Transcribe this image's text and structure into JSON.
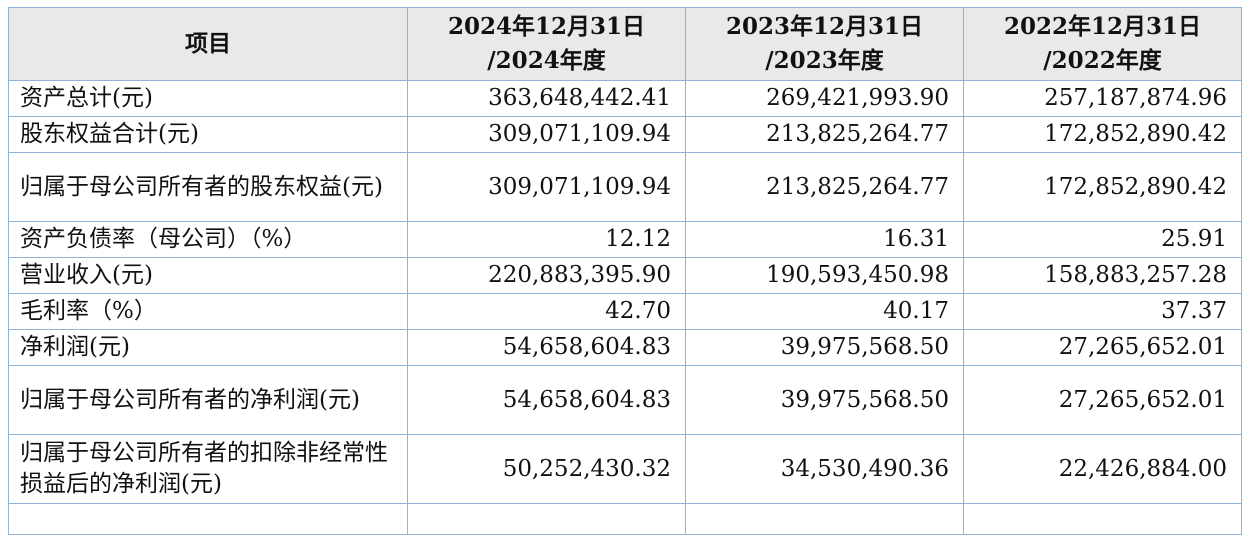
{
  "table": {
    "headers": [
      "项目",
      "2024年12月31日\n/2024年度",
      "2023年12月31日\n/2023年度",
      "2022年12月31日\n/2022年度"
    ],
    "header_lines": [
      [
        "项目"
      ],
      [
        "2024年12月31日",
        "/2024年度"
      ],
      [
        "2023年12月31日",
        "/2023年度"
      ],
      [
        "2022年12月31日",
        "/2022年度"
      ]
    ],
    "rows": [
      {
        "label": "资产总计(元)",
        "values": [
          "363,648,442.41",
          "269,421,993.90",
          "257,187,874.96"
        ]
      },
      {
        "label": "股东权益合计(元)",
        "values": [
          "309,071,109.94",
          "213,825,264.77",
          "172,852,890.42"
        ]
      },
      {
        "label": "归属于母公司所有者的股东权益(元)",
        "values": [
          "309,071,109.94",
          "213,825,264.77",
          "172,852,890.42"
        ]
      },
      {
        "label": "资产负债率（母公司）（%）",
        "values": [
          "12.12",
          "16.31",
          "25.91"
        ]
      },
      {
        "label": "营业收入(元)",
        "values": [
          "220,883,395.90",
          "190,593,450.98",
          "158,883,257.28"
        ]
      },
      {
        "label": "毛利率（%）",
        "values": [
          "42.70",
          "40.17",
          "37.37"
        ]
      },
      {
        "label": "净利润(元)",
        "values": [
          "54,658,604.83",
          "39,975,568.50",
          "27,265,652.01"
        ]
      },
      {
        "label": "归属于母公司所有者的净利润(元)",
        "values": [
          "54,658,604.83",
          "39,975,568.50",
          "27,265,652.01"
        ]
      },
      {
        "label": "归属于母公司所有者的扣除非经常性损益后的净利润(元)",
        "values": [
          "50,252,430.32",
          "34,530,490.36",
          "22,426,884.00"
        ]
      }
    ]
  }
}
